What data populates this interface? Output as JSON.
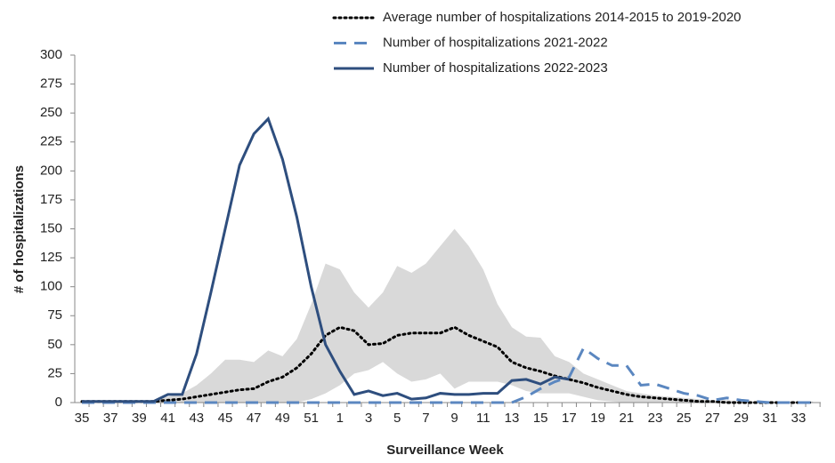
{
  "chart_data": {
    "type": "line",
    "x_label": "Surveillance Week",
    "y_label": "# of hospitalizations",
    "categories": [
      "35",
      null,
      "37",
      null,
      "39",
      null,
      "41",
      null,
      "43",
      null,
      "45",
      null,
      "47",
      null,
      "49",
      null,
      "51",
      null,
      "1",
      null,
      "3",
      null,
      "5",
      null,
      "7",
      null,
      "9",
      null,
      "11",
      null,
      "13",
      null,
      "15",
      null,
      "17",
      null,
      "19",
      null,
      "21",
      null,
      "23",
      null,
      "25",
      null,
      "27",
      null,
      "29",
      null,
      "31",
      null,
      "33",
      null
    ],
    "ylim": [
      0,
      300
    ],
    "yticks": [
      0,
      25,
      50,
      75,
      100,
      125,
      150,
      175,
      200,
      225,
      250,
      275,
      300
    ],
    "legend": "top-right",
    "band": {
      "color": "#d9d9d9",
      "upper": [
        2,
        2,
        2,
        2,
        2,
        2,
        5,
        8,
        15,
        25,
        37,
        37,
        35,
        45,
        40,
        55,
        85,
        120,
        115,
        95,
        82,
        95,
        118,
        112,
        120,
        135,
        150,
        135,
        115,
        85,
        65,
        57,
        56,
        40,
        35,
        25,
        20,
        15,
        10,
        8,
        6,
        5,
        4,
        3,
        2,
        2,
        1,
        1,
        1,
        1,
        1,
        1
      ],
      "lower": [
        0,
        0,
        0,
        0,
        0,
        0,
        0,
        0,
        0,
        0,
        0,
        0,
        0,
        0,
        0,
        0,
        3,
        8,
        15,
        25,
        28,
        35,
        25,
        18,
        20,
        25,
        12,
        18,
        18,
        18,
        15,
        10,
        8,
        8,
        8,
        5,
        2,
        1,
        0,
        0,
        0,
        0,
        0,
        0,
        0,
        0,
        0,
        0,
        0,
        0,
        0,
        0
      ]
    },
    "series": [
      {
        "name": "Average number of hospitalizations 2014-2015 to 2019-2020",
        "color": "#000000",
        "style": "dotted",
        "values": [
          1,
          1,
          1,
          1,
          1,
          1,
          2,
          3,
          5,
          7,
          9,
          11,
          12,
          18,
          22,
          30,
          42,
          58,
          65,
          62,
          50,
          51,
          58,
          60,
          60,
          60,
          65,
          58,
          53,
          48,
          35,
          30,
          27,
          23,
          20,
          17,
          13,
          10,
          7,
          5,
          4,
          3,
          2,
          1,
          1,
          0,
          0,
          0,
          0,
          0,
          0,
          0
        ]
      },
      {
        "name": "Number of hospitalizations 2021-2022",
        "color": "#5b87c0",
        "style": "dashed",
        "values": [
          0,
          0,
          0,
          0,
          0,
          0,
          0,
          0,
          0,
          0,
          0,
          0,
          0,
          0,
          0,
          0,
          0,
          0,
          0,
          0,
          0,
          0,
          0,
          0,
          0,
          0,
          0,
          0,
          0,
          0,
          0,
          5,
          12,
          18,
          22,
          47,
          38,
          32,
          32,
          15,
          16,
          12,
          8,
          6,
          2,
          4,
          2,
          1,
          0,
          0,
          0,
          0
        ]
      },
      {
        "name": "Number of hospitalizations 2022-2023",
        "color": "#2e4e7e",
        "style": "solid",
        "values": [
          1,
          1,
          1,
          1,
          1,
          1,
          7,
          7,
          42,
          95,
          150,
          205,
          232,
          245,
          210,
          160,
          100,
          50,
          27,
          7,
          10,
          6,
          8,
          3,
          4,
          8,
          7,
          7,
          8,
          8,
          19,
          20,
          16,
          22,
          20,
          null,
          null,
          null,
          null,
          null,
          null,
          null,
          null,
          null,
          null,
          null,
          null,
          null,
          null,
          null,
          null,
          null
        ]
      }
    ]
  }
}
